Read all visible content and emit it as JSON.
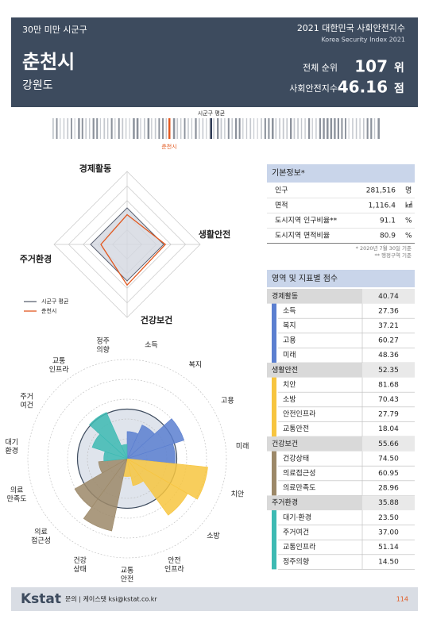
{
  "header": {
    "category": "30만 미만 시군구",
    "city": "춘천시",
    "province": "강원도",
    "title": "2021 대한민국 사회안전지수",
    "subtitle": "Korea Security Index 2021",
    "rank_label": "전체 순위",
    "rank": 107,
    "rank_unit": "위",
    "index_label": "사회안전지수",
    "index": 46.16,
    "index_unit": "점"
  },
  "radar": {
    "max": 100,
    "avg": {
      "name": "시군구 평균",
      "color": "#5d6373",
      "fill": "#d3d7e0",
      "values": [
        50,
        50,
        50,
        50
      ]
    },
    "city_color": "#e2581f"
  },
  "rose": {
    "max": 100,
    "ref": 50,
    "labels": [
      "소득",
      "복지",
      "고용",
      "미래",
      "치안",
      "소방",
      "안전\n인프라",
      "교통\n안전",
      "건강\n상태",
      "의료\n접근성",
      "의료\n만족도",
      "대기\n환경",
      "주거\n여건",
      "교통\n인프라",
      "정주\n의향"
    ]
  },
  "info_table": {
    "title": "기본정보*",
    "rows": [
      [
        "인구",
        "281,516",
        "명"
      ],
      [
        "면적",
        "1,116.4",
        "㎢"
      ],
      [
        "도시지역 인구비율**",
        "91.1",
        "%"
      ],
      [
        "도시지역 면적비율",
        "80.9",
        "%"
      ]
    ],
    "notes": [
      "* 2020년 7월 30일 기준",
      "** 행정구역 기준"
    ]
  },
  "score_table": {
    "title": "영역 및 지표별 점수",
    "groups": [
      {
        "name": "경제활동",
        "value": 40.74,
        "color": "#5b7fd0",
        "items": [
          {
            "name": "소득",
            "value": 27.36
          },
          {
            "name": "복지",
            "value": 37.21
          },
          {
            "name": "고용",
            "value": 60.27
          },
          {
            "name": "미래",
            "value": 48.36
          }
        ]
      },
      {
        "name": "생활안전",
        "value": 52.35,
        "color": "#f7c53f",
        "items": [
          {
            "name": "치안",
            "value": 81.68
          },
          {
            "name": "소방",
            "value": 70.43
          },
          {
            "name": "안전인프라",
            "value": 27.79
          },
          {
            "name": "교통안전",
            "value": 18.04
          }
        ]
      },
      {
        "name": "건강보건",
        "value": 55.66,
        "color": "#9c8868",
        "items": [
          {
            "name": "건강상태",
            "value": 74.5,
            "label": "74.50"
          },
          {
            "name": "의료접근성",
            "value": 60.95
          },
          {
            "name": "의료만족도",
            "value": 28.96
          }
        ]
      },
      {
        "name": "주거환경",
        "value": 35.88,
        "color": "#3dbab3",
        "items": [
          {
            "name": "대기·환경",
            "value": 23.5,
            "label": "23.50"
          },
          {
            "name": "주거여건",
            "value": 37,
            "label": "37.00"
          },
          {
            "name": "교통인프라",
            "value": 51.14
          },
          {
            "name": "정주의향",
            "value": 14.5,
            "label": "14.50"
          }
        ]
      }
    ]
  },
  "footer": {
    "logo": "Kstat",
    "contact": "문의 | 케이스탯 ksi@kstat.co.kr",
    "page": "114"
  }
}
